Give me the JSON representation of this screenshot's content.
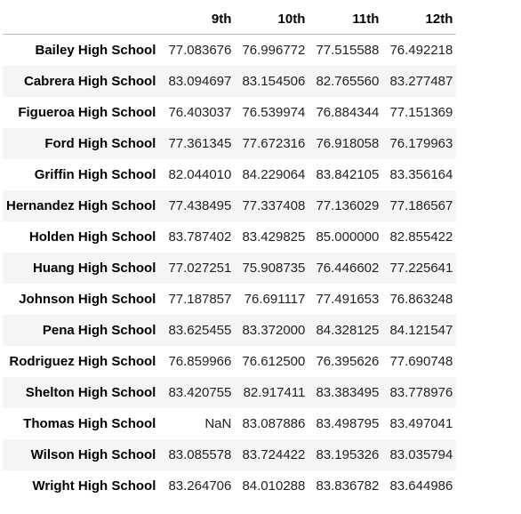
{
  "table": {
    "index_header": "",
    "columns": [
      "9th",
      "10th",
      "11th",
      "12th"
    ],
    "rows": [
      {
        "school": "Bailey High School",
        "values": [
          "77.083676",
          "76.996772",
          "77.515588",
          "76.492218"
        ]
      },
      {
        "school": "Cabrera High School",
        "values": [
          "83.094697",
          "83.154506",
          "82.765560",
          "83.277487"
        ]
      },
      {
        "school": "Figueroa High School",
        "values": [
          "76.403037",
          "76.539974",
          "76.884344",
          "77.151369"
        ]
      },
      {
        "school": "Ford High School",
        "values": [
          "77.361345",
          "77.672316",
          "76.918058",
          "76.179963"
        ]
      },
      {
        "school": "Griffin High School",
        "values": [
          "82.044010",
          "84.229064",
          "83.842105",
          "83.356164"
        ]
      },
      {
        "school": "Hernandez High School",
        "values": [
          "77.438495",
          "77.337408",
          "77.136029",
          "77.186567"
        ]
      },
      {
        "school": "Holden High School",
        "values": [
          "83.787402",
          "83.429825",
          "85.000000",
          "82.855422"
        ]
      },
      {
        "school": "Huang High School",
        "values": [
          "77.027251",
          "75.908735",
          "76.446602",
          "77.225641"
        ]
      },
      {
        "school": "Johnson High School",
        "values": [
          "77.187857",
          "76.691117",
          "77.491653",
          "76.863248"
        ]
      },
      {
        "school": "Pena High School",
        "values": [
          "83.625455",
          "83.372000",
          "84.328125",
          "84.121547"
        ]
      },
      {
        "school": "Rodriguez High School",
        "values": [
          "76.859966",
          "76.612500",
          "76.395626",
          "77.690748"
        ]
      },
      {
        "school": "Shelton High School",
        "values": [
          "83.420755",
          "82.917411",
          "83.383495",
          "83.778976"
        ]
      },
      {
        "school": "Thomas High School",
        "values": [
          "NaN",
          "83.087886",
          "83.498795",
          "83.497041"
        ]
      },
      {
        "school": "Wilson High School",
        "values": [
          "83.085578",
          "83.724422",
          "83.195326",
          "83.035794"
        ]
      },
      {
        "school": "Wright High School",
        "values": [
          "83.264706",
          "84.010288",
          "83.836782",
          "83.644986"
        ]
      }
    ]
  }
}
